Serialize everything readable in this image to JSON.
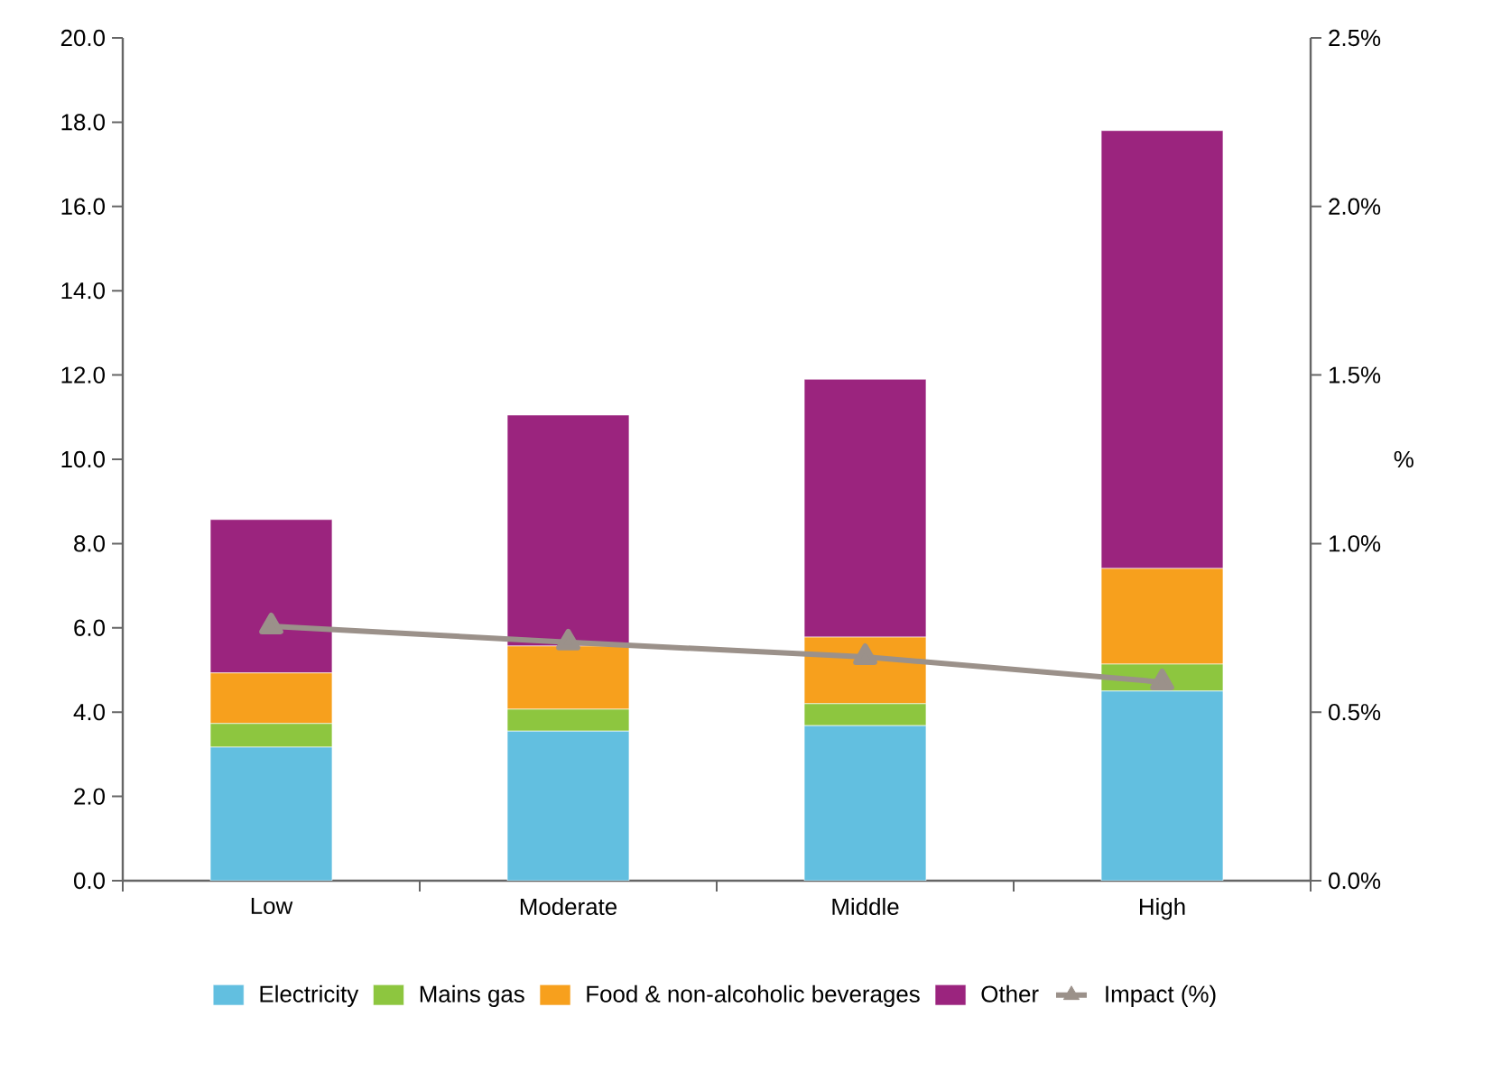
{
  "chart_data": {
    "type": "bar",
    "stacked": true,
    "categories": [
      "Low",
      "Moderate",
      "Middle",
      "High"
    ],
    "series": [
      {
        "name": "Electricity",
        "color": "#62bfe0",
        "values": [
          3.17,
          3.55,
          3.68,
          4.5
        ]
      },
      {
        "name": "Mains gas",
        "color": "#8dc63f",
        "values": [
          0.56,
          0.52,
          0.52,
          0.64
        ]
      },
      {
        "name": "Food & non-alcoholic  beverages",
        "color": "#f7a01d",
        "values": [
          1.2,
          1.5,
          1.58,
          2.27
        ]
      },
      {
        "name": "Other",
        "color": "#9b247e",
        "values": [
          3.64,
          5.48,
          6.12,
          10.39
        ]
      },
      {
        "name": "Impact (%)",
        "type": "line",
        "axis": "y2",
        "color": "#9b918a",
        "marker": "triangle",
        "line_style": "solid",
        "values": [
          0.755,
          0.707,
          0.664,
          0.589
        ]
      }
    ],
    "ylim": [
      0,
      20
    ],
    "yticks": [
      {
        "value": 0,
        "label": "0.0"
      },
      {
        "value": 2,
        "label": "2.0"
      },
      {
        "value": 4,
        "label": "4.0"
      },
      {
        "value": 6,
        "label": "6.0"
      },
      {
        "value": 8,
        "label": "8.0"
      },
      {
        "value": 10,
        "label": "10.0"
      },
      {
        "value": 12,
        "label": "12.0"
      },
      {
        "value": 14,
        "label": "14.0"
      },
      {
        "value": 16,
        "label": "16.0"
      },
      {
        "value": 18,
        "label": "18.0"
      },
      {
        "value": 20,
        "label": "20.0"
      }
    ],
    "y2label": "%",
    "y2lim": [
      0,
      2.5
    ],
    "y2ticks": [
      {
        "value": 0,
        "label": "0.0%"
      },
      {
        "value": 0.5,
        "label": "0.5%"
      },
      {
        "value": 1,
        "label": "1.0%"
      },
      {
        "value": 1.5,
        "label": "1.5%"
      },
      {
        "value": 2,
        "label": "2.0%"
      },
      {
        "value": 2.5,
        "label": "2.5%"
      }
    ],
    "legend": "bottom",
    "grid": false
  }
}
